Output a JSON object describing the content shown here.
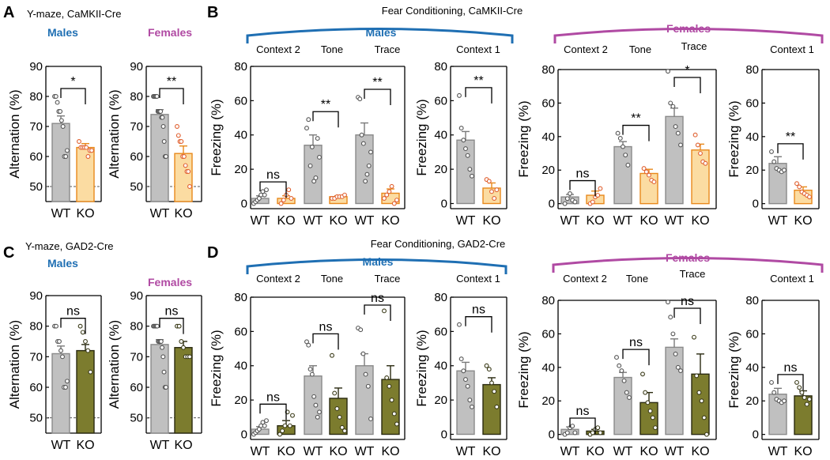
{
  "figure": {
    "panel_letters": [
      "A",
      "B",
      "C",
      "D"
    ],
    "colors": {
      "wt": "#c0c0c0",
      "ko_camk": "#fbdca2",
      "ko_camk_edge": "#e8891c",
      "ko_gad": "#7c7c2e",
      "males": "#1f6fb3",
      "females": "#b04aa3",
      "dots_ko_camk": "#e06030",
      "dash": "#555555"
    }
  },
  "chart_data": [
    {
      "type": "bar",
      "id": "A-males",
      "section": "Y-maze, CaMKII-Cre",
      "group_label": "Males",
      "ylabel": "Alternation (%)",
      "ylim": [
        45,
        90
      ],
      "yticks": [
        50,
        60,
        70,
        80,
        90
      ],
      "categories": [
        "WT",
        "KO"
      ],
      "values": [
        71,
        63
      ],
      "errors": [
        2.5,
        1.3
      ],
      "sig": "*",
      "chance": 50,
      "points": [
        [
          80,
          80,
          78,
          75,
          75,
          72,
          70,
          60,
          60,
          62
        ],
        [
          65,
          63,
          63,
          63,
          63,
          60,
          62,
          62
        ]
      ]
    },
    {
      "type": "bar",
      "id": "A-females",
      "group_label": "Females",
      "ylabel": "Alternation (%)",
      "ylim": [
        45,
        90
      ],
      "yticks": [
        50,
        60,
        70,
        80,
        90
      ],
      "categories": [
        "WT",
        "KO"
      ],
      "values": [
        74,
        61
      ],
      "errors": [
        1.6,
        2.5
      ],
      "sig": "**",
      "chance": 50,
      "points": [
        [
          80,
          80,
          80,
          80,
          80,
          75,
          75,
          75,
          75,
          73,
          73,
          70,
          65,
          60,
          60
        ],
        [
          70,
          67,
          65,
          65,
          60,
          60,
          57,
          55,
          55,
          50
        ]
      ]
    },
    {
      "type": "bar",
      "id": "B-males",
      "section": "Fear Conditioning, CaMKII-Cre",
      "group_label": "Males",
      "ylabel": "Freezing (%)",
      "ylim": [
        -3,
        80
      ],
      "yticks": [
        0,
        20,
        40,
        60,
        80
      ],
      "groups": [
        "Context 2",
        "Tone",
        "Trace"
      ],
      "categories": [
        "WT",
        "KO",
        "WT",
        "KO",
        "WT",
        "KO"
      ],
      "values": [
        3,
        3,
        34,
        4,
        40,
        6
      ],
      "errors": [
        1.5,
        1.5,
        6,
        0.5,
        7,
        2.5
      ],
      "sig": [
        "ns",
        "**",
        "**"
      ],
      "points": [
        [
          0,
          1,
          2,
          3,
          5,
          7,
          5,
          8
        ],
        [
          0,
          2,
          5,
          8,
          3
        ],
        [
          44,
          49,
          22,
          33,
          13,
          15,
          38,
          27
        ],
        [
          3,
          3,
          4,
          4,
          4,
          5
        ],
        [
          62,
          61,
          40,
          35,
          13,
          17,
          22,
          30
        ],
        [
          3,
          5,
          7,
          10,
          0,
          2
        ]
      ]
    },
    {
      "type": "bar",
      "id": "B-males-ctx1",
      "group_label": "Context 1",
      "ylabel": "Freezing (%)",
      "ylim": [
        -3,
        80
      ],
      "yticks": [
        0,
        20,
        40,
        60,
        80
      ],
      "categories": [
        "WT",
        "KO"
      ],
      "values": [
        37,
        9
      ],
      "errors": [
        5,
        3
      ],
      "sig": "**",
      "points": [
        [
          63,
          44,
          37,
          32,
          28,
          20,
          16
        ],
        [
          14,
          13,
          7,
          3,
          8
        ]
      ]
    },
    {
      "type": "bar",
      "id": "B-females",
      "group_label": "Females",
      "ylabel": "Freezing (%)",
      "ylim": [
        -3,
        80
      ],
      "yticks": [
        0,
        20,
        40,
        60,
        80
      ],
      "groups": [
        "Context 2",
        "Tone",
        "Trace"
      ],
      "categories": [
        "WT",
        "KO",
        "WT",
        "KO",
        "WT",
        "KO"
      ],
      "values": [
        4,
        5,
        34,
        18,
        52,
        32
      ],
      "errors": [
        1.5,
        2.5,
        3,
        2.5,
        5,
        3.5
      ],
      "sig": [
        "ns",
        "**",
        "*"
      ],
      "points": [
        [
          0,
          3,
          6,
          2,
          1
        ],
        [
          0,
          1,
          4,
          5,
          9
        ],
        [
          42,
          39,
          34,
          29,
          23
        ],
        [
          21,
          19,
          17,
          14,
          13
        ],
        [
          79,
          60,
          58,
          46,
          42,
          35
        ],
        [
          41,
          35,
          30,
          25,
          24
        ]
      ]
    },
    {
      "type": "bar",
      "id": "B-females-ctx1",
      "group_label": "Context 1",
      "ylabel": "Freezing (%)",
      "ylim": [
        -3,
        80
      ],
      "yticks": [
        0,
        20,
        40,
        60,
        80
      ],
      "categories": [
        "WT",
        "KO"
      ],
      "values": [
        24,
        8
      ],
      "errors": [
        4,
        2
      ],
      "sig": "**",
      "points": [
        [
          31,
          25,
          21,
          20,
          19,
          20
        ],
        [
          12,
          10,
          7,
          6,
          5,
          4
        ]
      ]
    },
    {
      "type": "bar",
      "id": "C-males",
      "section": "Y-maze, GAD2-Cre",
      "group_label": "Males",
      "ylabel": "Alternation (%)",
      "ylim": [
        45,
        90
      ],
      "yticks": [
        50,
        60,
        70,
        80,
        90
      ],
      "categories": [
        "WT",
        "KO"
      ],
      "values": [
        71,
        72
      ],
      "errors": [
        2.5,
        2
      ],
      "sig": "ns",
      "chance": 50,
      "points": [
        [
          80,
          80,
          75,
          75,
          72,
          70,
          60,
          60,
          62
        ],
        [
          80,
          78,
          75,
          72,
          65
        ]
      ]
    },
    {
      "type": "bar",
      "id": "C-females",
      "group_label": "Females",
      "ylabel": "Alternation (%)",
      "ylim": [
        45,
        90
      ],
      "yticks": [
        50,
        60,
        70,
        80,
        90
      ],
      "categories": [
        "WT",
        "KO"
      ],
      "values": [
        74,
        73
      ],
      "errors": [
        1.6,
        2
      ],
      "sig": "ns",
      "chance": 50,
      "points": [
        [
          80,
          80,
          80,
          80,
          80,
          75,
          75,
          75,
          75,
          73,
          70,
          65,
          60,
          60
        ],
        [
          80,
          80,
          75,
          73,
          70,
          70,
          70
        ]
      ]
    },
    {
      "type": "bar",
      "id": "D-males",
      "section": "Fear Conditioning, GAD2-Cre",
      "group_label": "Males",
      "ylabel": "Freezing (%)",
      "ylim": [
        -3,
        80
      ],
      "yticks": [
        0,
        20,
        40,
        60,
        80
      ],
      "groups": [
        "Context 2",
        "Tone",
        "Trace"
      ],
      "categories": [
        "WT",
        "KO",
        "WT",
        "KO",
        "WT",
        "KO"
      ],
      "values": [
        3,
        5,
        34,
        21,
        40,
        32
      ],
      "errors": [
        1.5,
        3,
        6,
        6,
        7,
        8
      ],
      "sig": [
        "ns",
        "ns",
        "ns"
      ],
      "points": [
        [
          0,
          1,
          2,
          3,
          5,
          7,
          5,
          8
        ],
        [
          0,
          2,
          5,
          13,
          5,
          11
        ],
        [
          54,
          52,
          38,
          35,
          22,
          17,
          10,
          13
        ],
        [
          46,
          24,
          15,
          10,
          4,
          2
        ],
        [
          62,
          61,
          47,
          35,
          28,
          9
        ],
        [
          72,
          33,
          28,
          20,
          12,
          6
        ]
      ]
    },
    {
      "type": "bar",
      "id": "D-males-ctx1",
      "group_label": "Context 1",
      "ylabel": "Freezing (%)",
      "ylim": [
        -3,
        80
      ],
      "yticks": [
        0,
        20,
        40,
        60,
        80
      ],
      "categories": [
        "WT",
        "KO"
      ],
      "values": [
        37,
        29
      ],
      "errors": [
        5,
        4
      ],
      "sig": "ns",
      "points": [
        [
          64,
          44,
          37,
          32,
          28,
          20,
          16
        ],
        [
          40,
          38,
          30,
          25,
          16
        ]
      ]
    },
    {
      "type": "bar",
      "id": "D-females",
      "group_label": "Females",
      "ylabel": "Freezing (%)",
      "ylim": [
        -3,
        80
      ],
      "yticks": [
        0,
        20,
        40,
        60,
        80
      ],
      "groups": [
        "Context 2",
        "Tone",
        "Trace"
      ],
      "categories": [
        "WT",
        "KO",
        "WT",
        "KO",
        "WT",
        "KO"
      ],
      "values": [
        3,
        2,
        34,
        19,
        52,
        36
      ],
      "errors": [
        1.5,
        1,
        3,
        6,
        5,
        12
      ],
      "sig": [
        "ns",
        "ns",
        "ns"
      ],
      "points": [
        [
          0,
          1,
          4,
          5,
          1
        ],
        [
          0,
          1,
          3,
          4,
          1
        ],
        [
          46,
          41,
          38,
          32,
          25,
          22
        ],
        [
          36,
          25,
          19,
          14,
          10,
          4
        ],
        [
          79,
          70,
          60,
          48,
          40,
          38
        ],
        [
          58,
          35,
          25,
          20,
          10,
          0
        ]
      ]
    },
    {
      "type": "bar",
      "id": "D-females-ctx1",
      "group_label": "Context 1",
      "ylabel": "Freezing (%)",
      "ylim": [
        -3,
        80
      ],
      "yticks": [
        0,
        20,
        40,
        60,
        80
      ],
      "categories": [
        "WT",
        "KO"
      ],
      "values": [
        24,
        23
      ],
      "errors": [
        3.5,
        3
      ],
      "sig": "ns",
      "points": [
        [
          31,
          25,
          21,
          20,
          19,
          20
        ],
        [
          31,
          28,
          25,
          22,
          18,
          21
        ]
      ]
    }
  ]
}
